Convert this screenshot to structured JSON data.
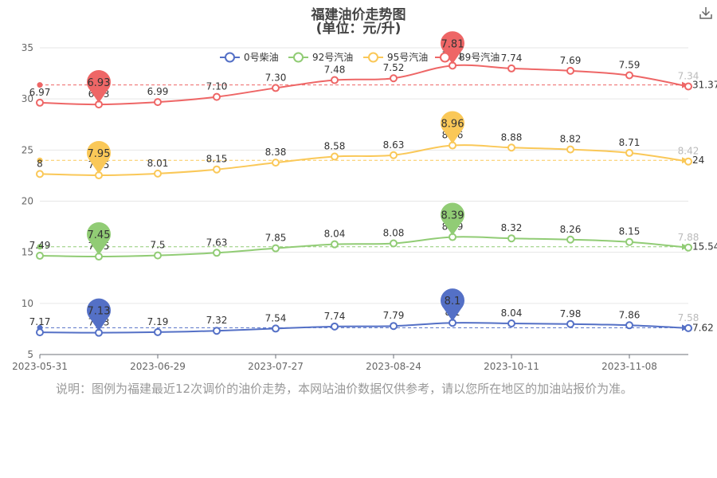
{
  "header": {
    "title": "福建油价走势图",
    "subtitle": "(单位：元/升)",
    "download_icon": "download-icon"
  },
  "note": "说明：图例为福建最近12次调价的油价走势，本网站油价数据仅供参考，请以您所在地区的加油站报价为准。",
  "chart_data": {
    "type": "line",
    "x_labels": [
      "2023-05-31",
      "2023-06-29",
      "2023-07-27",
      "2023-08-24",
      "2023-10-11",
      "2023-11-08"
    ],
    "ylim": [
      5,
      35
    ],
    "y_ticks": [
      5,
      10,
      15,
      20,
      25,
      30,
      35
    ],
    "legend_position": "top-center",
    "grid": "horizontal",
    "series": [
      {
        "name": "0号柴油",
        "color": "#5470c6",
        "values": [
          7.17,
          7.13,
          7.19,
          7.32,
          7.54,
          7.74,
          7.79,
          8.1,
          8.04,
          7.98,
          7.86,
          7.58
        ],
        "labels": [
          "7.17",
          "7.13",
          "7.19",
          "7.32",
          "7.54",
          "7.74",
          "7.79",
          "8.1",
          "8.04",
          "7.98",
          "7.86",
          "7.58"
        ],
        "max_pin": "8.1",
        "min_pin": "7.13",
        "avg_label": "7.62"
      },
      {
        "name": "92号汽油",
        "color": "#91cc75",
        "values": [
          7.49,
          7.45,
          7.5,
          7.63,
          7.85,
          8.04,
          8.08,
          8.39,
          8.32,
          8.26,
          8.15,
          7.88
        ],
        "labels": [
          "7.49",
          "7.45",
          "7.5",
          "7.63",
          "7.85",
          "8.04",
          "8.08",
          "8.39",
          "8.32",
          "8.26",
          "8.15",
          "7.88"
        ],
        "max_pin": "8.39",
        "min_pin": "7.45",
        "avg_label": "15.54"
      },
      {
        "name": "95号汽油",
        "color": "#fac858",
        "values": [
          8.0,
          7.95,
          8.01,
          8.15,
          8.38,
          8.58,
          8.63,
          8.96,
          8.88,
          8.82,
          8.71,
          8.42
        ],
        "labels": [
          "8",
          "7.95",
          "8.01",
          "8.15",
          "8.38",
          "8.58",
          "8.63",
          "8.96",
          "8.88",
          "8.82",
          "8.71",
          "8.42"
        ],
        "max_pin": "8.96",
        "min_pin": "7.95",
        "avg_label": "24"
      },
      {
        "name": "89号汽油",
        "color": "#ee6666",
        "values": [
          6.97,
          6.93,
          6.99,
          7.1,
          7.3,
          7.48,
          7.52,
          7.81,
          7.74,
          7.69,
          7.59,
          7.34
        ],
        "labels": [
          "6.97",
          "6.93",
          "6.99",
          "7.10",
          "7.30",
          "7.48",
          "7.52",
          "7.81",
          "7.74",
          "7.69",
          "7.59",
          "7.34"
        ],
        "max_pin": "7.81",
        "min_pin": "6.93",
        "avg_label": "31.37"
      }
    ]
  }
}
